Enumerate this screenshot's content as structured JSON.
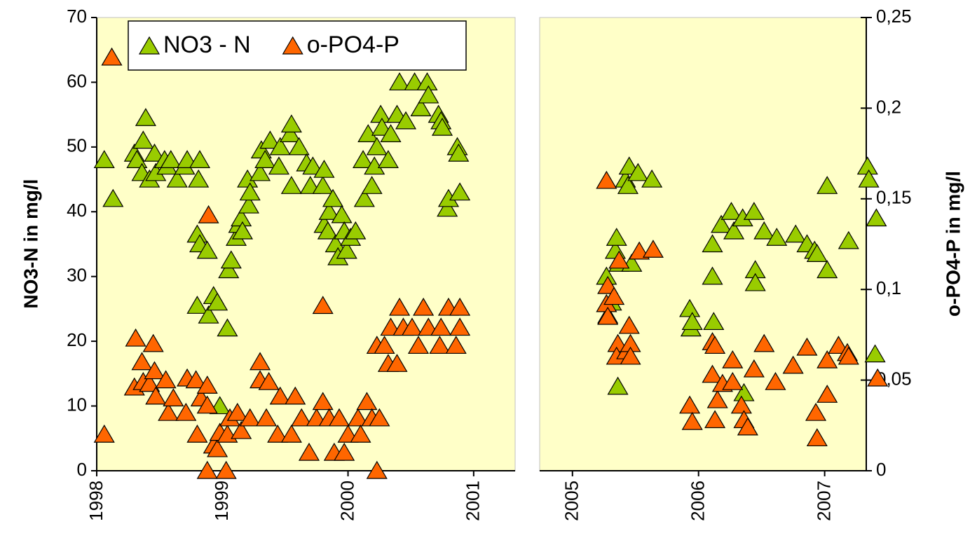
{
  "chart_data": [
    {
      "type": "scatter",
      "ylabel": "NO3-N in mg/l",
      "xlim": [
        1998,
        2001.33
      ],
      "xticks": [
        1998,
        1999,
        2000,
        2001
      ],
      "ylim": [
        0,
        70
      ],
      "yticks": [
        0,
        10,
        20,
        30,
        40,
        50,
        60,
        70
      ],
      "y2lim": [
        0,
        0.25
      ],
      "legend": "top-left",
      "series": [
        {
          "name": "NO3 - N",
          "color": "#99cc00",
          "x": [
            1998.06,
            1998.13,
            1998.3,
            1998.32,
            1998.37,
            1998.39,
            1998.36,
            1998.42,
            1998.46,
            1998.47,
            1998.54,
            1998.56,
            1998.59,
            1998.64,
            1998.7,
            1998.72,
            1998.81,
            1998.82,
            1998.8,
            1998.8,
            1998.82,
            1998.88,
            1998.89,
            1998.93,
            1998.96,
            1998.98,
            1999.04,
            1999.05,
            1999.07,
            1999.11,
            1999.13,
            1999.15,
            1999.16,
            1999.2,
            1999.21,
            1999.22,
            1999.3,
            1999.31,
            1999.34,
            1999.38,
            1999.45,
            1999.46,
            1999.54,
            1999.55,
            1999.55,
            1999.61,
            1999.67,
            1999.7,
            1999.72,
            1999.8,
            1999.81,
            1999.81,
            1999.84,
            1999.85,
            1999.88,
            1999.9,
            1999.92,
            1999.95,
            1999.97,
            1999.99,
            2000.02,
            2000.06,
            2000.12,
            2000.13,
            2000.16,
            2000.19,
            2000.21,
            2000.23,
            2000.26,
            2000.27,
            2000.32,
            2000.34,
            2000.39,
            2000.41,
            2000.46,
            2000.53,
            2000.58,
            2000.63,
            2000.64,
            2000.72,
            2000.74,
            2000.75,
            2000.79,
            2000.8,
            2000.87,
            2000.88,
            2000.89
          ],
          "values": [
            48,
            42,
            49,
            48,
            51,
            54.5,
            46,
            45,
            49,
            46,
            48,
            47,
            48,
            45,
            47,
            48,
            45,
            48,
            36.5,
            25.5,
            35,
            34,
            24,
            27,
            26,
            10,
            22,
            31,
            32.5,
            36,
            38,
            39,
            37,
            45,
            41,
            43,
            46,
            49.5,
            48,
            51,
            47,
            50,
            52,
            53.5,
            44,
            50,
            47.5,
            44,
            47,
            44,
            46.5,
            38,
            37,
            40,
            42,
            35,
            33,
            39.5,
            37,
            34,
            36,
            37,
            48,
            42,
            52,
            44,
            47,
            50,
            55,
            53,
            48,
            52,
            55,
            60,
            54,
            60,
            56,
            60,
            58,
            55,
            54,
            53,
            40.5,
            42,
            50,
            49,
            43
          ]
        },
        {
          "name": "o-PO4-P",
          "color": "#ff6600",
          "axis": "y2",
          "x": [
            1998.06,
            1998.12,
            1998.3,
            1998.31,
            1998.36,
            1998.37,
            1998.42,
            1998.45,
            1998.46,
            1998.47,
            1998.55,
            1998.57,
            1998.61,
            1998.71,
            1998.72,
            1998.79,
            1998.8,
            1998.83,
            1998.88,
            1998.88,
            1998.88,
            1998.89,
            1998.93,
            1998.96,
            1998.98,
            1999.03,
            1999.04,
            1999.06,
            1999.12,
            1999.15,
            1999.22,
            1999.3,
            1999.3,
            1999.35,
            1999.37,
            1999.44,
            1999.46,
            1999.55,
            1999.58,
            1999.63,
            1999.69,
            1999.75,
            1999.8,
            1999.8,
            1999.85,
            1999.89,
            1999.93,
            1999.97,
            2000.0,
            2000.08,
            2000.1,
            2000.15,
            2000.19,
            2000.23,
            2000.25,
            2000.23,
            2000.29,
            2000.32,
            2000.34,
            2000.39,
            2000.41,
            2000.44,
            2000.51,
            2000.56,
            2000.6,
            2000.64,
            2000.73,
            2000.74,
            2000.8,
            2000.86,
            2000.89,
            2000.89
          ],
          "values": [
            0.02,
            0.228,
            0.046,
            0.073,
            0.06,
            0.049,
            0.048,
            0.07,
            0.055,
            0.041,
            0.05,
            0.032,
            0.04,
            0.032,
            0.051,
            0.05,
            0.02,
            0.04,
            0.036,
            0.047,
            0,
            0.141,
            0.014,
            0.012,
            0.021,
            0,
            0.02,
            0.029,
            0.032,
            0.022,
            0.029,
            0.06,
            0.05,
            0.029,
            0.049,
            0.02,
            0.041,
            0.02,
            0.041,
            0.029,
            0.01,
            0.029,
            0.091,
            0.038,
            0.029,
            0.01,
            0.029,
            0.01,
            0.02,
            0.029,
            0.02,
            0.038,
            0.029,
            0,
            0.029,
            0.069,
            0.069,
            0.059,
            0.079,
            0.059,
            0.09,
            0.079,
            0.079,
            0.069,
            0.09,
            0.079,
            0.069,
            0.079,
            0.09,
            0.069,
            0.09,
            0.079
          ]
        }
      ]
    },
    {
      "type": "scatter",
      "y2label": "o-PO4-P in mg/l",
      "xlim": [
        2004.74,
        2007.33
      ],
      "xticks": [
        2005,
        2006,
        2007
      ],
      "ylim": [
        0,
        70
      ],
      "y2lim": [
        0,
        0.25
      ],
      "y2ticks": [
        0,
        {
          "value": 0.05,
          "label": "0,05"
        },
        {
          "value": 0.1,
          "label": "0,1"
        },
        {
          "value": 0.15,
          "label": "0,15"
        },
        {
          "value": 0.2,
          "label": "0,2"
        },
        {
          "value": 0.25,
          "label": "0,25"
        }
      ],
      "series": [
        {
          "color": "#99cc00",
          "x": [
            2005.27,
            2005.28,
            2005.31,
            2005.34,
            2005.35,
            2005.37,
            2005.36,
            2005.42,
            2005.44,
            2005.45,
            2005.47,
            2005.52,
            2005.63,
            2005.93,
            2005.94,
            2005.95,
            2006.12,
            2006.11,
            2006.11,
            2006.18,
            2006.26,
            2006.28,
            2006.35,
            2006.44,
            2006.45,
            2006.45,
            2006.52,
            2006.62,
            2006.77,
            2006.86,
            2006.92,
            2006.94,
            2007.02,
            2007.02,
            2007.19,
            2007.34,
            2007.35,
            2007.41,
            2006.36,
            2007.4
          ],
          "values": [
            30,
            24,
            26,
            34,
            36,
            32,
            13,
            45,
            44,
            47,
            32,
            46,
            45,
            25,
            22,
            23,
            23,
            30,
            35,
            38,
            40,
            37,
            39,
            40,
            31,
            29,
            37,
            36,
            36.5,
            35,
            34,
            33.5,
            31,
            44,
            35.5,
            47,
            45,
            39,
            12,
            18
          ]
        },
        {
          "color": "#ff6600",
          "axis": "y2",
          "x": [
            2005.27,
            2005.28,
            2005.27,
            2005.28,
            2005.33,
            2005.37,
            2005.36,
            2005.35,
            2005.43,
            2005.45,
            2005.46,
            2005.46,
            2005.53,
            2005.64,
            2005.93,
            2005.95,
            2006.11,
            2006.13,
            2006.11,
            2006.13,
            2006.15,
            2006.19,
            2006.27,
            2006.27,
            2006.34,
            2006.36,
            2006.39,
            2006.44,
            2006.52,
            2006.61,
            2006.75,
            2006.86,
            2006.93,
            2006.94,
            2007.02,
            2007.02,
            2007.11,
            2007.18,
            2007.19,
            2007.42
          ],
          "values": [
            0.16,
            0.102,
            0.092,
            0.085,
            0.096,
            0.116,
            0.07,
            0.063,
            0.066,
            0.08,
            0.07,
            0.063,
            0.121,
            0.122,
            0.036,
            0.027,
            0.071,
            0.069,
            0.053,
            0.028,
            0.039,
            0.048,
            0.061,
            0.049,
            0.036,
            0.028,
            0.024,
            0.056,
            0.07,
            0.049,
            0.058,
            0.068,
            0.032,
            0.018,
            0.042,
            0.061,
            0.069,
            0.065,
            0.063,
            0.051
          ]
        }
      ]
    }
  ]
}
